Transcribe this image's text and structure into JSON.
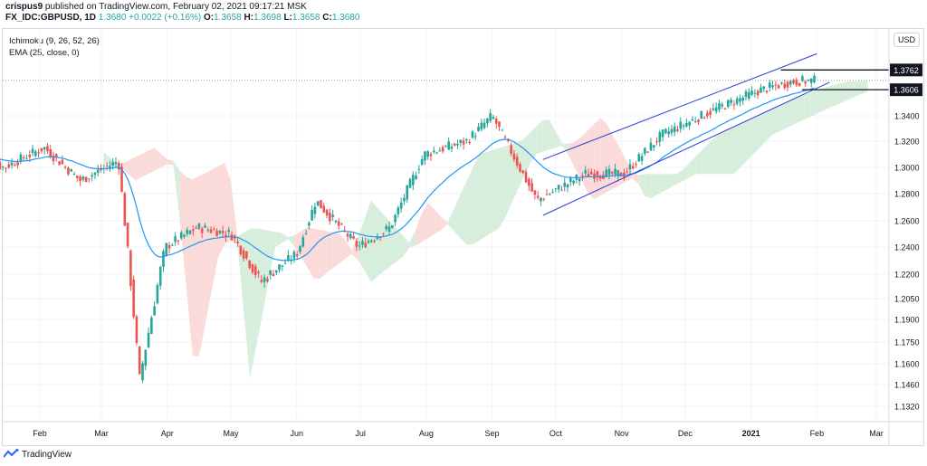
{
  "header": {
    "author": "crispus9",
    "published_text": "published on TradingView.com, February 02, 2021 09:17:21 MSK"
  },
  "symbol_line": {
    "symbol": "FX_IDC:GBPUSD, 1D",
    "last": "1.3680",
    "change": "+0.0022 (+0.16%)",
    "open_label": "O:",
    "open": "1.3658",
    "high_label": "H:",
    "high": "1.3698",
    "low_label": "L:",
    "low": "1.3658",
    "close_label": "C:",
    "close": "1.3680"
  },
  "indicators": [
    "Ichimoku (9, 26, 52, 26)",
    "EMA (25, close, 0)"
  ],
  "currency_button": "USD",
  "footer": {
    "brand": "TradingView"
  },
  "colors": {
    "up": "#26a69a",
    "down": "#ef5350",
    "ema": "#2196f3",
    "channel": "#2a3ed5",
    "cloud_green": "#d4ecd9",
    "cloud_red": "#fbd7d6",
    "grid": "#f0f3fa"
  },
  "chart_data": {
    "type": "candlestick",
    "symbol": "FX_IDC:GBPUSD",
    "interval": "1D",
    "y_ticks": [
      "1.3400",
      "1.3200",
      "1.3000",
      "1.2800",
      "1.2600",
      "1.2400",
      "1.2200",
      "1.2050",
      "1.1900",
      "1.1750",
      "1.1600",
      "1.1460",
      "1.1320"
    ],
    "x_ticks": [
      "Feb",
      "Mar",
      "Apr",
      "May",
      "Jun",
      "Jul",
      "Aug",
      "Sep",
      "Oct",
      "Nov",
      "Dec",
      "2021",
      "Feb",
      "Mar"
    ],
    "price_labels": [
      {
        "value": "1.3762",
        "style": "resistance"
      },
      {
        "value": "1.3606",
        "style": "support"
      }
    ],
    "last_price": 1.368,
    "legend_position": "top-left",
    "series": [
      {
        "kind": "candles",
        "approx_close_path": [
          [
            "2020-01-02",
            1.309
          ],
          [
            "2020-01-15",
            1.3
          ],
          [
            "2020-02-03",
            1.315
          ],
          [
            "2020-02-20",
            1.29
          ],
          [
            "2020-03-09",
            1.305
          ],
          [
            "2020-03-19",
            1.15
          ],
          [
            "2020-03-31",
            1.24
          ],
          [
            "2020-04-15",
            1.255
          ],
          [
            "2020-05-01",
            1.25
          ],
          [
            "2020-05-15",
            1.215
          ],
          [
            "2020-06-01",
            1.235
          ],
          [
            "2020-06-10",
            1.275
          ],
          [
            "2020-06-30",
            1.24
          ],
          [
            "2020-07-15",
            1.255
          ],
          [
            "2020-07-31",
            1.31
          ],
          [
            "2020-08-20",
            1.32
          ],
          [
            "2020-09-01",
            1.34
          ],
          [
            "2020-09-22",
            1.275
          ],
          [
            "2020-10-15",
            1.295
          ],
          [
            "2020-11-02",
            1.295
          ],
          [
            "2020-11-20",
            1.325
          ],
          [
            "2020-12-15",
            1.345
          ],
          [
            "2021-01-05",
            1.36
          ],
          [
            "2021-01-20",
            1.367
          ],
          [
            "2021-02-01",
            1.368
          ]
        ]
      },
      {
        "kind": "ema",
        "period": 25
      },
      {
        "kind": "ichimoku",
        "params": [
          9,
          26,
          52,
          26
        ]
      }
    ],
    "ascending_channel": true
  }
}
